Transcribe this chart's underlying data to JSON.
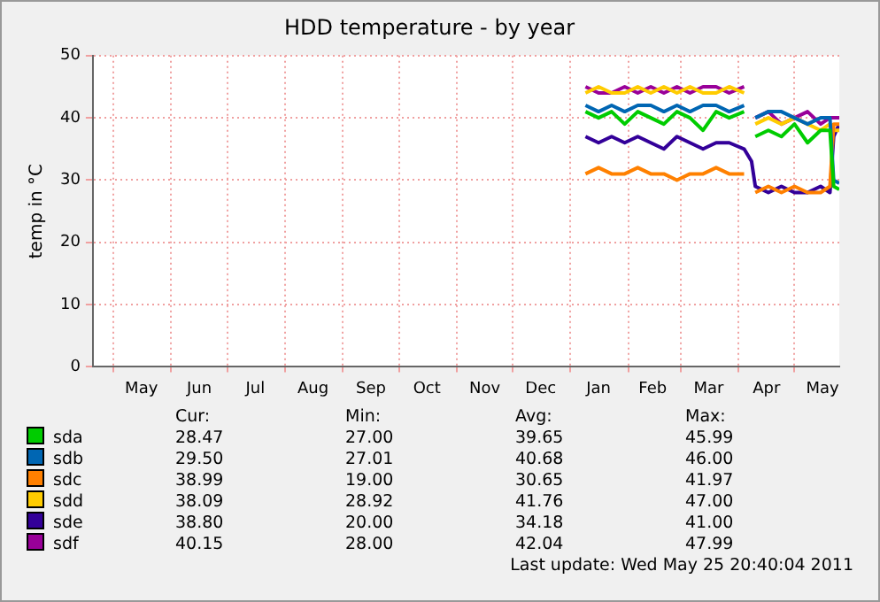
{
  "chart_data": {
    "type": "line",
    "title": "HDD temperature - by year",
    "ylabel": "temp in °C",
    "x": [
      "2011-01-09",
      "2011-01-16",
      "2011-01-23",
      "2011-01-30",
      "2011-02-06",
      "2011-02-13",
      "2011-02-20",
      "2011-02-27",
      "2011-03-06",
      "2011-03-13",
      "2011-03-20",
      "2011-03-27",
      "2011-04-04",
      "2011-04-08",
      "2011-04-10",
      "2011-04-17",
      "2011-04-24",
      "2011-05-01",
      "2011-05-08",
      "2011-05-15",
      "2011-05-20",
      "2011-05-22",
      "2011-05-25"
    ],
    "series": [
      {
        "name": "sda",
        "color": "#00cc00",
        "values": [
          41,
          40,
          41,
          39,
          41,
          40,
          39,
          41,
          40,
          38,
          41,
          40,
          41,
          null,
          37,
          38,
          37,
          39,
          36,
          38,
          38,
          29,
          28.5
        ]
      },
      {
        "name": "sdb",
        "color": "#0066b3",
        "values": [
          42,
          41,
          42,
          41,
          42,
          42,
          41,
          42,
          41,
          42,
          42,
          41,
          42,
          null,
          40,
          41,
          41,
          40,
          39,
          40,
          40,
          30,
          29.5
        ]
      },
      {
        "name": "sdc",
        "color": "#ff8000",
        "values": [
          31,
          32,
          31,
          31,
          32,
          31,
          31,
          30,
          31,
          31,
          32,
          31,
          31,
          null,
          28,
          29,
          28,
          29,
          28,
          28,
          29,
          39,
          39
        ]
      },
      {
        "name": "sdd",
        "color": "#ffcc00",
        "values": [
          44,
          45,
          44,
          44,
          45,
          44,
          45,
          44,
          45,
          44,
          44,
          45,
          44,
          null,
          39,
          40,
          39,
          40,
          39,
          38,
          39,
          38,
          38
        ]
      },
      {
        "name": "sde",
        "color": "#330099",
        "values": [
          37,
          36,
          37,
          36,
          37,
          36,
          35,
          37,
          36,
          35,
          36,
          36,
          35,
          33,
          29,
          28,
          29,
          28,
          28,
          29,
          28,
          37,
          39
        ]
      },
      {
        "name": "sdf",
        "color": "#990099",
        "values": [
          45,
          44,
          44,
          45,
          44,
          45,
          44,
          45,
          44,
          45,
          45,
          44,
          45,
          null,
          40,
          41,
          39,
          40,
          41,
          39,
          40,
          40,
          40
        ]
      }
    ],
    "xlim": [
      "2010-04-20",
      "2011-05-25"
    ],
    "xticks": [
      {
        "value": "2010-05-01",
        "label": null
      },
      {
        "value": "2010-05-16",
        "label": "May"
      },
      {
        "value": "2010-06-01",
        "label": null
      },
      {
        "value": "2010-06-16",
        "label": "Jun"
      },
      {
        "value": "2010-07-01",
        "label": null
      },
      {
        "value": "2010-07-16",
        "label": "Jul"
      },
      {
        "value": "2010-08-01",
        "label": null
      },
      {
        "value": "2010-08-16",
        "label": "Aug"
      },
      {
        "value": "2010-09-01",
        "label": null
      },
      {
        "value": "2010-09-16",
        "label": "Sep"
      },
      {
        "value": "2010-10-01",
        "label": null
      },
      {
        "value": "2010-10-16",
        "label": "Oct"
      },
      {
        "value": "2010-11-01",
        "label": null
      },
      {
        "value": "2010-11-16",
        "label": "Nov"
      },
      {
        "value": "2010-12-01",
        "label": null
      },
      {
        "value": "2010-12-16",
        "label": "Dec"
      },
      {
        "value": "2011-01-01",
        "label": null
      },
      {
        "value": "2011-01-16",
        "label": "Jan"
      },
      {
        "value": "2011-02-01",
        "label": null
      },
      {
        "value": "2011-02-14",
        "label": "Feb"
      },
      {
        "value": "2011-03-01",
        "label": null
      },
      {
        "value": "2011-03-16",
        "label": "Mar"
      },
      {
        "value": "2011-04-01",
        "label": null
      },
      {
        "value": "2011-04-16",
        "label": "Apr"
      },
      {
        "value": "2011-05-01",
        "label": null
      },
      {
        "value": "2011-05-16",
        "label": "May"
      }
    ],
    "ylim": [
      0,
      50
    ],
    "yticks": [
      0,
      10,
      20,
      30,
      40,
      50
    ],
    "grid": true,
    "legend": "bottom",
    "marker": "none",
    "line_style": "solid",
    "annotations": [
      "Cur:",
      "Min:",
      "Avg:",
      "Max:",
      "28.47",
      "27.00",
      "39.65",
      "45.99",
      "29.50",
      "27.01",
      "40.68",
      "46.00",
      "38.99",
      "19.00",
      "30.65",
      "41.97",
      "38.09",
      "28.92",
      "41.76",
      "47.00",
      "38.80",
      "20.00",
      "34.18",
      "41.00",
      "40.15",
      "28.00",
      "42.04",
      "47.99",
      "Last update: Wed May 25 20:40:04 2011"
    ]
  }
}
